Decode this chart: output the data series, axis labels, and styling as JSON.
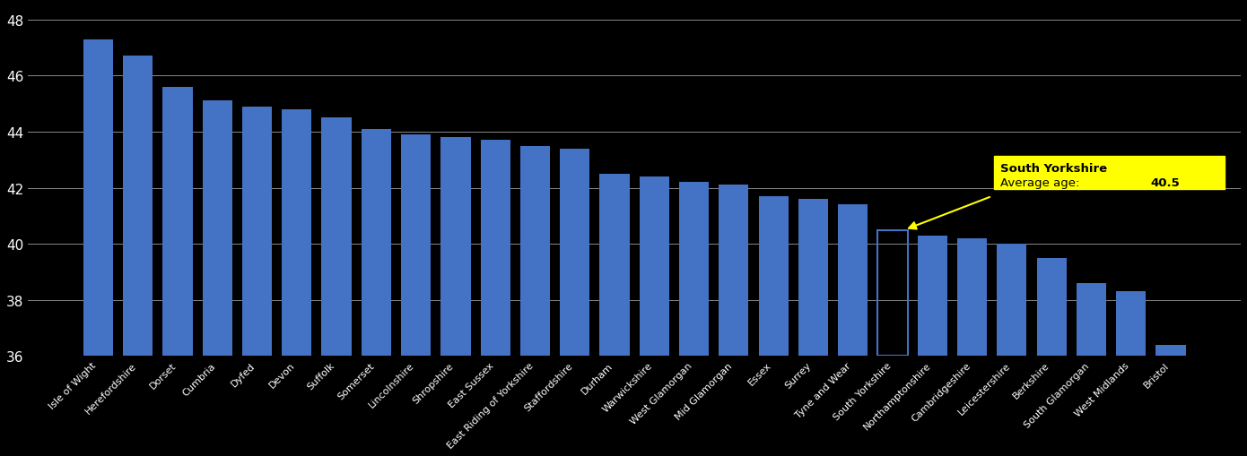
{
  "categories": [
    "Isle of Wight",
    "Herefordshire",
    "Dorset",
    "Cumbria",
    "Dyfed",
    "Devon",
    "Suffolk",
    "Somerset",
    "Lincolnshire",
    "Shropshire",
    "East Sussex",
    "East Riding of Yorkshire",
    "Staffordshire",
    "Durham",
    "Warwickshire",
    "West Glamorgan",
    "Mid Glamorgan",
    "Essex",
    "Surrey",
    "Tyne and Wear",
    "South Yorkshire",
    "Northamptonshire",
    "Cambridgeshire",
    "Leicestershire",
    "Berkshire",
    "South Glamorgan",
    "West Midlands",
    "Bristol"
  ],
  "values": [
    47.3,
    46.7,
    45.6,
    45.1,
    44.9,
    44.8,
    44.5,
    44.1,
    43.9,
    43.8,
    43.7,
    43.5,
    43.4,
    42.5,
    42.4,
    42.2,
    42.1,
    41.7,
    41.6,
    41.4,
    40.5,
    40.3,
    40.2,
    40.0,
    39.5,
    38.6,
    38.3,
    36.4
  ],
  "highlight_index": 20,
  "highlight_label": "South Yorkshire",
  "highlight_value": 40.5,
  "bar_color": "#4472C4",
  "background_color": "#000000",
  "text_color": "#ffffff",
  "annotation_bg": "#ffff00",
  "annotation_text_color": "#000000",
  "ymin": 36,
  "ymax": 48.5,
  "yticks": [
    36,
    38,
    40,
    42,
    44,
    46,
    48
  ],
  "grid_color": "#888888",
  "annotation_bold_text": "40.5"
}
